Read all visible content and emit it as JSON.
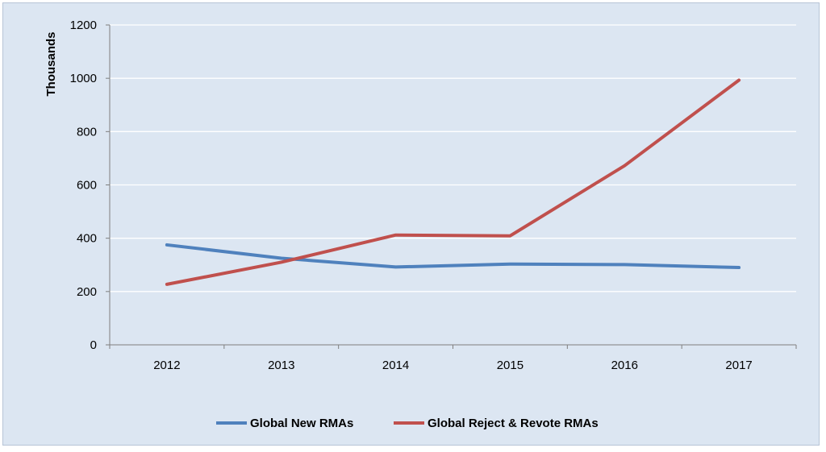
{
  "chart_data": {
    "type": "line",
    "title": "",
    "xlabel": "",
    "ylabel": "Thousands",
    "categories": [
      "2012",
      "2013",
      "2014",
      "2015",
      "2016",
      "2017"
    ],
    "ylim": [
      0,
      1200
    ],
    "yticks": [
      0,
      200,
      400,
      600,
      800,
      1000,
      1200
    ],
    "grid": true,
    "legend_position": "bottom",
    "series": [
      {
        "name": "Global New RMAs",
        "color": "#4f81bd",
        "values": [
          375,
          325,
          292,
          303,
          301,
          290
        ]
      },
      {
        "name": "Global Reject & Revote RMAs",
        "color": "#c0504d",
        "values": [
          227,
          310,
          412,
          409,
          672,
          993
        ]
      }
    ]
  }
}
